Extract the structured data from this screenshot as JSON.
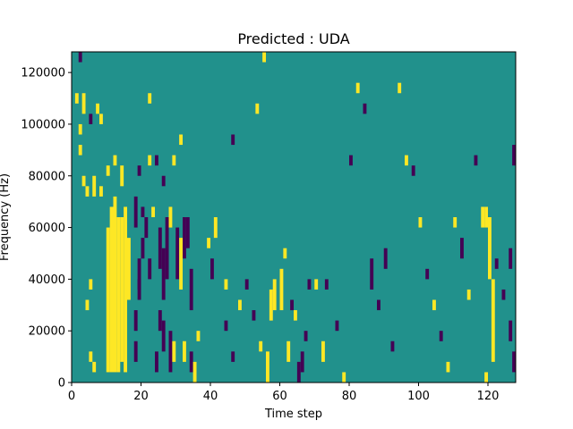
{
  "chart_data": {
    "type": "heatmap",
    "title": "Predicted : UDA",
    "xlabel": "Time step",
    "ylabel": "Frequency (Hz)",
    "xlim": [
      0,
      128
    ],
    "ylim": [
      0,
      128000
    ],
    "x_ticks": [
      0,
      20,
      40,
      60,
      80,
      100,
      120
    ],
    "x_tick_labels": [
      "0",
      "20",
      "40",
      "60",
      "80",
      "100",
      "120"
    ],
    "y_ticks": [
      0,
      20000,
      40000,
      60000,
      80000,
      100000,
      120000
    ],
    "y_tick_labels": [
      "0",
      "20000",
      "40000",
      "60000",
      "80000",
      "100000",
      "120000"
    ],
    "grid": false,
    "legend": "none",
    "colormap": "viridis",
    "value_levels": [
      -1,
      0,
      1
    ],
    "background_value": 0,
    "colors": {
      "-1": "#440154",
      "0": "#21918c",
      "1": "#fde725"
    },
    "bin_height_hz": 4000,
    "segments": [
      {
        "t": 2,
        "f0": 124000,
        "f1": 128000,
        "v": -1
      },
      {
        "t": 1,
        "f0": 108000,
        "f1": 112000,
        "v": 1
      },
      {
        "t": 3,
        "f0": 104000,
        "f1": 112000,
        "v": 1
      },
      {
        "t": 2,
        "f0": 96000,
        "f1": 100000,
        "v": 1
      },
      {
        "t": 2,
        "f0": 88000,
        "f1": 92000,
        "v": 1
      },
      {
        "t": 5,
        "f0": 100000,
        "f1": 104000,
        "v": -1
      },
      {
        "t": 7,
        "f0": 104000,
        "f1": 108000,
        "v": 1
      },
      {
        "t": 8,
        "f0": 100000,
        "f1": 104000,
        "v": 1
      },
      {
        "t": 3,
        "f0": 76000,
        "f1": 80000,
        "v": 1
      },
      {
        "t": 4,
        "f0": 72000,
        "f1": 76000,
        "v": 1
      },
      {
        "t": 6,
        "f0": 72000,
        "f1": 80000,
        "v": 1
      },
      {
        "t": 8,
        "f0": 72000,
        "f1": 76000,
        "v": 1
      },
      {
        "t": 5,
        "f0": 8000,
        "f1": 12000,
        "v": 1
      },
      {
        "t": 6,
        "f0": 4000,
        "f1": 8000,
        "v": 1
      },
      {
        "t": 4,
        "f0": 28000,
        "f1": 32000,
        "v": 1
      },
      {
        "t": 5,
        "f0": 36000,
        "f1": 40000,
        "v": 1
      },
      {
        "t": 10,
        "f0": 4000,
        "f1": 60000,
        "v": 1
      },
      {
        "t": 11,
        "f0": 4000,
        "f1": 68000,
        "v": 1
      },
      {
        "t": 12,
        "f0": 4000,
        "f1": 72000,
        "v": 1
      },
      {
        "t": 13,
        "f0": 4000,
        "f1": 64000,
        "v": 1
      },
      {
        "t": 14,
        "f0": 8000,
        "f1": 64000,
        "v": 1
      },
      {
        "t": 15,
        "f0": 4000,
        "f1": 68000,
        "v": 1
      },
      {
        "t": 16,
        "f0": 32000,
        "f1": 56000,
        "v": 1
      },
      {
        "t": 14,
        "f0": 76000,
        "f1": 84000,
        "v": 1
      },
      {
        "t": 10,
        "f0": 80000,
        "f1": 84000,
        "v": 1
      },
      {
        "t": 12,
        "f0": 84000,
        "f1": 88000,
        "v": 1
      },
      {
        "t": 18,
        "f0": 60000,
        "f1": 72000,
        "v": -1
      },
      {
        "t": 19,
        "f0": 36000,
        "f1": 48000,
        "v": -1
      },
      {
        "t": 20,
        "f0": 64000,
        "f1": 68000,
        "v": -1
      },
      {
        "t": 21,
        "f0": 56000,
        "f1": 64000,
        "v": -1
      },
      {
        "t": 22,
        "f0": 40000,
        "f1": 48000,
        "v": -1
      },
      {
        "t": 20,
        "f0": 48000,
        "f1": 56000,
        "v": -1
      },
      {
        "t": 19,
        "f0": 32000,
        "f1": 40000,
        "v": -1
      },
      {
        "t": 18,
        "f0": 20000,
        "f1": 28000,
        "v": -1
      },
      {
        "t": 18,
        "f0": 8000,
        "f1": 16000,
        "v": -1
      },
      {
        "t": 19,
        "f0": 80000,
        "f1": 84000,
        "v": -1
      },
      {
        "t": 22,
        "f0": 108000,
        "f1": 112000,
        "v": 1
      },
      {
        "t": 22,
        "f0": 84000,
        "f1": 88000,
        "v": 1
      },
      {
        "t": 24,
        "f0": 84000,
        "f1": 88000,
        "v": -1
      },
      {
        "t": 23,
        "f0": 64000,
        "f1": 68000,
        "v": 1
      },
      {
        "t": 25,
        "f0": 44000,
        "f1": 60000,
        "v": -1
      },
      {
        "t": 26,
        "f0": 32000,
        "f1": 52000,
        "v": -1
      },
      {
        "t": 27,
        "f0": 40000,
        "f1": 64000,
        "v": -1
      },
      {
        "t": 25,
        "f0": 20000,
        "f1": 28000,
        "v": -1
      },
      {
        "t": 26,
        "f0": 12000,
        "f1": 24000,
        "v": -1
      },
      {
        "t": 24,
        "f0": 4000,
        "f1": 12000,
        "v": -1
      },
      {
        "t": 26,
        "f0": 76000,
        "f1": 80000,
        "v": -1
      },
      {
        "t": 28,
        "f0": 60000,
        "f1": 68000,
        "v": 1
      },
      {
        "t": 29,
        "f0": 84000,
        "f1": 88000,
        "v": 1
      },
      {
        "t": 28,
        "f0": 4000,
        "f1": 20000,
        "v": -1
      },
      {
        "t": 29,
        "f0": 8000,
        "f1": 16000,
        "v": 1
      },
      {
        "t": 30,
        "f0": 40000,
        "f1": 60000,
        "v": -1
      },
      {
        "t": 31,
        "f0": 36000,
        "f1": 56000,
        "v": 1
      },
      {
        "t": 32,
        "f0": 48000,
        "f1": 64000,
        "v": -1
      },
      {
        "t": 33,
        "f0": 52000,
        "f1": 64000,
        "v": -1
      },
      {
        "t": 34,
        "f0": 28000,
        "f1": 44000,
        "v": -1
      },
      {
        "t": 32,
        "f0": 8000,
        "f1": 16000,
        "v": 1
      },
      {
        "t": 34,
        "f0": 4000,
        "f1": 12000,
        "v": -1
      },
      {
        "t": 35,
        "f0": 0,
        "f1": 8000,
        "v": 1
      },
      {
        "t": 36,
        "f0": 16000,
        "f1": 20000,
        "v": 1
      },
      {
        "t": 31,
        "f0": 92000,
        "f1": 96000,
        "v": 1
      },
      {
        "t": 39,
        "f0": 52000,
        "f1": 56000,
        "v": 1
      },
      {
        "t": 41,
        "f0": 56000,
        "f1": 64000,
        "v": 1
      },
      {
        "t": 40,
        "f0": 40000,
        "f1": 48000,
        "v": -1
      },
      {
        "t": 44,
        "f0": 36000,
        "f1": 40000,
        "v": 1
      },
      {
        "t": 46,
        "f0": 92000,
        "f1": 96000,
        "v": -1
      },
      {
        "t": 44,
        "f0": 20000,
        "f1": 24000,
        "v": -1
      },
      {
        "t": 46,
        "f0": 8000,
        "f1": 12000,
        "v": -1
      },
      {
        "t": 48,
        "f0": 28000,
        "f1": 32000,
        "v": 1
      },
      {
        "t": 50,
        "f0": 36000,
        "f1": 40000,
        "v": -1
      },
      {
        "t": 52,
        "f0": 24000,
        "f1": 28000,
        "v": -1
      },
      {
        "t": 53,
        "f0": 104000,
        "f1": 108000,
        "v": 1
      },
      {
        "t": 54,
        "f0": 12000,
        "f1": 16000,
        "v": 1
      },
      {
        "t": 56,
        "f0": 0,
        "f1": 12000,
        "v": 1
      },
      {
        "t": 55,
        "f0": 124000,
        "f1": 128000,
        "v": 1
      },
      {
        "t": 57,
        "f0": 24000,
        "f1": 36000,
        "v": 1
      },
      {
        "t": 58,
        "f0": 28000,
        "f1": 40000,
        "v": 1
      },
      {
        "t": 60,
        "f0": 28000,
        "f1": 44000,
        "v": 1
      },
      {
        "t": 61,
        "f0": 48000,
        "f1": 52000,
        "v": 1
      },
      {
        "t": 62,
        "f0": 8000,
        "f1": 16000,
        "v": 1
      },
      {
        "t": 63,
        "f0": 28000,
        "f1": 32000,
        "v": -1
      },
      {
        "t": 64,
        "f0": 24000,
        "f1": 28000,
        "v": 1
      },
      {
        "t": 65,
        "f0": 0,
        "f1": 8000,
        "v": -1
      },
      {
        "t": 66,
        "f0": 4000,
        "f1": 12000,
        "v": -1
      },
      {
        "t": 67,
        "f0": 16000,
        "f1": 20000,
        "v": -1
      },
      {
        "t": 68,
        "f0": 36000,
        "f1": 40000,
        "v": -1
      },
      {
        "t": 70,
        "f0": 36000,
        "f1": 40000,
        "v": 1
      },
      {
        "t": 73,
        "f0": 36000,
        "f1": 40000,
        "v": -1
      },
      {
        "t": 72,
        "f0": 8000,
        "f1": 16000,
        "v": 1
      },
      {
        "t": 76,
        "f0": 20000,
        "f1": 24000,
        "v": -1
      },
      {
        "t": 78,
        "f0": 0,
        "f1": 4000,
        "v": 1
      },
      {
        "t": 80,
        "f0": 84000,
        "f1": 88000,
        "v": -1
      },
      {
        "t": 82,
        "f0": 112000,
        "f1": 116000,
        "v": 1
      },
      {
        "t": 84,
        "f0": 104000,
        "f1": 108000,
        "v": -1
      },
      {
        "t": 86,
        "f0": 36000,
        "f1": 48000,
        "v": -1
      },
      {
        "t": 88,
        "f0": 28000,
        "f1": 32000,
        "v": -1
      },
      {
        "t": 90,
        "f0": 44000,
        "f1": 52000,
        "v": -1
      },
      {
        "t": 92,
        "f0": 12000,
        "f1": 16000,
        "v": -1
      },
      {
        "t": 94,
        "f0": 112000,
        "f1": 116000,
        "v": 1
      },
      {
        "t": 96,
        "f0": 84000,
        "f1": 88000,
        "v": 1
      },
      {
        "t": 98,
        "f0": 80000,
        "f1": 84000,
        "v": -1
      },
      {
        "t": 100,
        "f0": 60000,
        "f1": 64000,
        "v": 1
      },
      {
        "t": 102,
        "f0": 40000,
        "f1": 44000,
        "v": -1
      },
      {
        "t": 104,
        "f0": 28000,
        "f1": 32000,
        "v": 1
      },
      {
        "t": 106,
        "f0": 16000,
        "f1": 20000,
        "v": -1
      },
      {
        "t": 108,
        "f0": 4000,
        "f1": 8000,
        "v": 1
      },
      {
        "t": 110,
        "f0": 60000,
        "f1": 64000,
        "v": 1
      },
      {
        "t": 112,
        "f0": 48000,
        "f1": 56000,
        "v": -1
      },
      {
        "t": 114,
        "f0": 32000,
        "f1": 36000,
        "v": 1
      },
      {
        "t": 116,
        "f0": 84000,
        "f1": 88000,
        "v": -1
      },
      {
        "t": 118,
        "f0": 60000,
        "f1": 68000,
        "v": 1
      },
      {
        "t": 119,
        "f0": 60000,
        "f1": 68000,
        "v": 1
      },
      {
        "t": 120,
        "f0": 40000,
        "f1": 64000,
        "v": 1
      },
      {
        "t": 121,
        "f0": 8000,
        "f1": 40000,
        "v": 1
      },
      {
        "t": 119,
        "f0": 0,
        "f1": 4000,
        "v": 1
      },
      {
        "t": 122,
        "f0": 44000,
        "f1": 48000,
        "v": -1
      },
      {
        "t": 124,
        "f0": 32000,
        "f1": 36000,
        "v": -1
      },
      {
        "t": 126,
        "f0": 16000,
        "f1": 24000,
        "v": -1
      },
      {
        "t": 127,
        "f0": 4000,
        "f1": 12000,
        "v": -1
      },
      {
        "t": 126,
        "f0": 44000,
        "f1": 52000,
        "v": -1
      },
      {
        "t": 127,
        "f0": 84000,
        "f1": 92000,
        "v": -1
      }
    ]
  }
}
